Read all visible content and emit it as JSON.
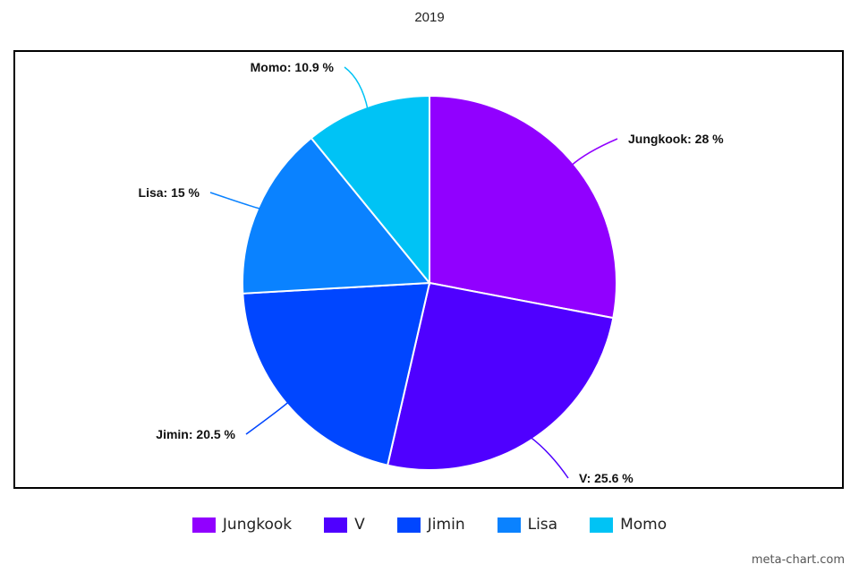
{
  "chart_data": {
    "type": "pie",
    "title": "2019",
    "categories": [
      "Jungkook",
      "V",
      "Jimin",
      "Lisa",
      "Momo"
    ],
    "values": [
      28,
      25.6,
      20.5,
      15,
      10.9
    ],
    "unit": "%",
    "colors": [
      "#9100ff",
      "#4f00ff",
      "#0046ff",
      "#0a82ff",
      "#00c3f5"
    ],
    "data_labels": [
      "Jungkook: 28 %",
      "V: 25.6 %",
      "Jimin: 20.5 %",
      "Lisa: 15 %",
      "Momo: 10.9 %"
    ],
    "legend_position": "bottom"
  },
  "watermark": "meta-chart.com"
}
